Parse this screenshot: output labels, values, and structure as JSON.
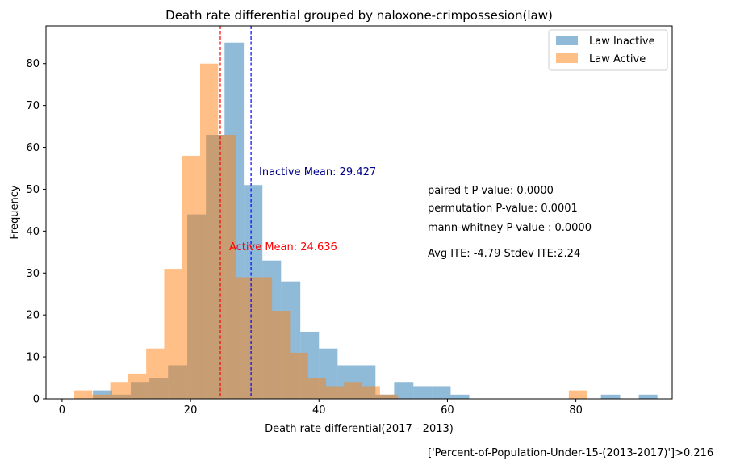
{
  "chart_data": {
    "type": "histogram",
    "title": "Death rate differential grouped by naloxone-crimpossesion(law)",
    "xlabel": "Death rate differential(2017 - 2013)",
    "ylabel": "Frequency",
    "xlim": [
      -2.5,
      95
    ],
    "ylim": [
      0,
      89
    ],
    "xticks": [
      0,
      20,
      40,
      60,
      80
    ],
    "yticks": [
      0,
      10,
      20,
      30,
      40,
      50,
      60,
      70,
      80
    ],
    "grid": false,
    "legend_position": "top-right",
    "series": [
      {
        "name": "Law Inactive",
        "color": "#1f77b4",
        "opacity": 0.5,
        "bins": [
          {
            "x0": 4.8,
            "x1": 7.8,
            "count": 2
          },
          {
            "x0": 7.8,
            "x1": 10.7,
            "count": 1
          },
          {
            "x0": 10.7,
            "x1": 13.6,
            "count": 4
          },
          {
            "x0": 13.6,
            "x1": 16.5,
            "count": 5
          },
          {
            "x0": 16.5,
            "x1": 19.5,
            "count": 8
          },
          {
            "x0": 19.5,
            "x1": 22.4,
            "count": 44
          },
          {
            "x0": 22.4,
            "x1": 25.3,
            "count": 63
          },
          {
            "x0": 25.3,
            "x1": 28.3,
            "count": 85
          },
          {
            "x0": 28.3,
            "x1": 31.2,
            "count": 51
          },
          {
            "x0": 31.2,
            "x1": 34.1,
            "count": 33
          },
          {
            "x0": 34.1,
            "x1": 37.1,
            "count": 28
          },
          {
            "x0": 37.1,
            "x1": 40.0,
            "count": 16
          },
          {
            "x0": 40.0,
            "x1": 42.9,
            "count": 12
          },
          {
            "x0": 42.9,
            "x1": 45.9,
            "count": 8
          },
          {
            "x0": 45.9,
            "x1": 48.8,
            "count": 8
          },
          {
            "x0": 48.8,
            "x1": 51.7,
            "count": 1
          },
          {
            "x0": 51.7,
            "x1": 54.7,
            "count": 4
          },
          {
            "x0": 54.7,
            "x1": 57.6,
            "count": 3
          },
          {
            "x0": 57.6,
            "x1": 60.5,
            "count": 3
          },
          {
            "x0": 60.5,
            "x1": 63.4,
            "count": 1
          },
          {
            "x0": 83.9,
            "x1": 86.9,
            "count": 1
          },
          {
            "x0": 89.8,
            "x1": 92.7,
            "count": 1
          }
        ]
      },
      {
        "name": "Law Active",
        "color": "#ff7f0e",
        "opacity": 0.5,
        "bins": [
          {
            "x0": 1.9,
            "x1": 4.7,
            "count": 2
          },
          {
            "x0": 4.7,
            "x1": 7.5,
            "count": 1
          },
          {
            "x0": 7.5,
            "x1": 10.3,
            "count": 4
          },
          {
            "x0": 10.3,
            "x1": 13.1,
            "count": 6
          },
          {
            "x0": 13.1,
            "x1": 15.9,
            "count": 12
          },
          {
            "x0": 15.9,
            "x1": 18.7,
            "count": 31
          },
          {
            "x0": 18.7,
            "x1": 21.5,
            "count": 58
          },
          {
            "x0": 21.5,
            "x1": 24.3,
            "count": 80
          },
          {
            "x0": 24.3,
            "x1": 27.1,
            "count": 63
          },
          {
            "x0": 27.1,
            "x1": 29.9,
            "count": 29
          },
          {
            "x0": 29.9,
            "x1": 32.7,
            "count": 29
          },
          {
            "x0": 32.7,
            "x1": 35.5,
            "count": 21
          },
          {
            "x0": 35.5,
            "x1": 38.3,
            "count": 11
          },
          {
            "x0": 38.3,
            "x1": 41.1,
            "count": 5
          },
          {
            "x0": 41.1,
            "x1": 43.9,
            "count": 3
          },
          {
            "x0": 43.9,
            "x1": 46.7,
            "count": 4
          },
          {
            "x0": 46.7,
            "x1": 49.5,
            "count": 3
          },
          {
            "x0": 49.5,
            "x1": 52.3,
            "count": 1
          },
          {
            "x0": 78.9,
            "x1": 81.7,
            "count": 2
          }
        ]
      }
    ],
    "mean_lines": [
      {
        "series": "Law Inactive",
        "x": 29.427,
        "color": "#0000ff",
        "label": "Inactive Mean: 29.427",
        "label_color": "#00008b"
      },
      {
        "series": "Law Active",
        "x": 24.636,
        "color": "#ff0000",
        "label": "Active Mean: 24.636",
        "label_color": "#ff0000"
      }
    ],
    "annotations": [
      "paired t P-value: 0.0000",
      "permutation P-value: 0.0001",
      "mann-whitney P-value : 0.0000",
      "Avg ITE: -4.79 Stdev ITE:2.24"
    ],
    "footnote": "['Percent-of-Population-Under-15-(2013-2017)']>0.216"
  }
}
